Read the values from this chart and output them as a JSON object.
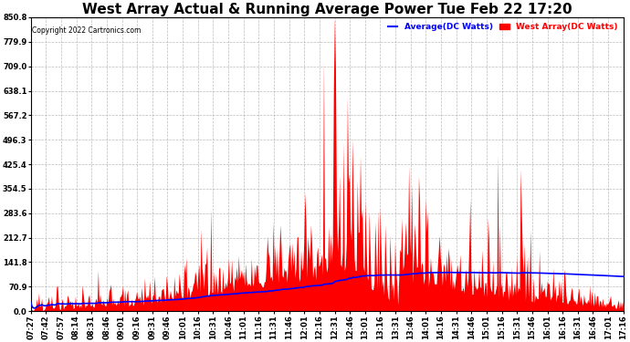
{
  "title": "West Array Actual & Running Average Power Tue Feb 22 17:20",
  "copyright": "Copyright 2022 Cartronics.com",
  "legend_avg": "Average(DC Watts)",
  "legend_west": "West Array(DC Watts)",
  "ylabel_color_avg": "blue",
  "ylabel_color_west": "red",
  "ymin": 0.0,
  "ymax": 850.8,
  "yticks": [
    0.0,
    70.9,
    141.8,
    212.7,
    283.6,
    354.5,
    425.4,
    496.3,
    567.2,
    638.1,
    709.0,
    779.9,
    850.8
  ],
  "background_color": "#ffffff",
  "plot_bg_color": "#ffffff",
  "grid_color": "#aaaaaa",
  "bar_color": "#ff0000",
  "line_color": "#0000ff",
  "title_fontsize": 11,
  "tick_fontsize": 6,
  "xtick_labels": [
    "07:27",
    "07:42",
    "07:57",
    "08:14",
    "08:31",
    "08:46",
    "09:01",
    "09:16",
    "09:31",
    "09:46",
    "10:01",
    "10:16",
    "10:31",
    "10:46",
    "11:01",
    "11:16",
    "11:31",
    "11:46",
    "12:01",
    "12:16",
    "12:31",
    "12:46",
    "13:01",
    "13:16",
    "13:31",
    "13:46",
    "14:01",
    "14:16",
    "14:31",
    "14:46",
    "15:01",
    "15:16",
    "15:31",
    "15:46",
    "16:01",
    "16:16",
    "16:31",
    "16:46",
    "17:01",
    "17:16"
  ]
}
